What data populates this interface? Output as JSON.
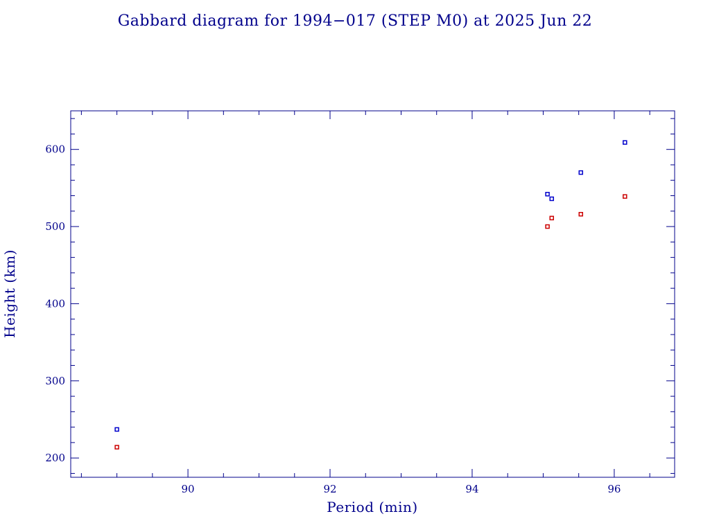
{
  "chart_data": {
    "type": "scatter",
    "title": "Gabbard diagram for 1994−017 (STEP M0) at 2025 Jun 22",
    "xlabel": "Period (min)",
    "ylabel": "Height (km)",
    "xlim": [
      88.35,
      96.85
    ],
    "ylim": [
      175,
      650
    ],
    "x_ticks_major": [
      90,
      92,
      94,
      96
    ],
    "x_tick_labels": [
      "90",
      "92",
      "94",
      "96"
    ],
    "x_ticks_minor_step": 0.5,
    "y_ticks_major": [
      200,
      300,
      400,
      500,
      600
    ],
    "y_tick_labels": [
      "200",
      "300",
      "400",
      "500",
      "600"
    ],
    "y_ticks_minor_step": 20,
    "grid": false,
    "colors": {
      "axis": "#00008b",
      "text": "#00008b",
      "apogee": "#0000cc",
      "perigee": "#cc0000"
    },
    "series": [
      {
        "role": "apogee",
        "color": "#0000cc",
        "points": [
          {
            "x": 89.0,
            "y": 237
          },
          {
            "x": 95.06,
            "y": 542
          },
          {
            "x": 95.12,
            "y": 536
          },
          {
            "x": 95.53,
            "y": 570
          },
          {
            "x": 96.15,
            "y": 609
          }
        ]
      },
      {
        "role": "perigee",
        "color": "#cc0000",
        "points": [
          {
            "x": 89.0,
            "y": 214
          },
          {
            "x": 95.06,
            "y": 500
          },
          {
            "x": 95.12,
            "y": 511
          },
          {
            "x": 95.53,
            "y": 516
          },
          {
            "x": 96.15,
            "y": 539
          }
        ]
      }
    ]
  }
}
